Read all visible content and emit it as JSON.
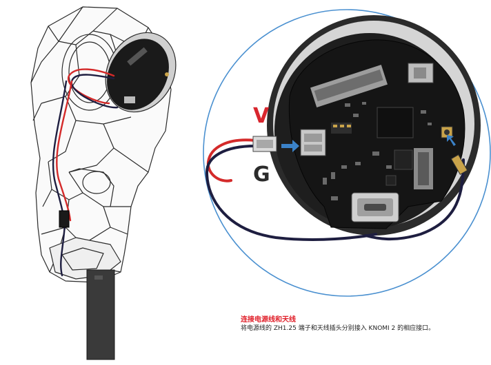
{
  "callout": {
    "v_label": "V",
    "g_label": "G",
    "v_color": "#d8262e",
    "g_color": "#2b2b2b",
    "circle_color": "#4a90d0",
    "arrow_color": "#3b82c8",
    "wire_red": "#d42a2a",
    "wire_black": "#1e1e40"
  },
  "caption": {
    "title": "连接电源线和天线",
    "body": "将电源线的 ZH1.25 端子和天线插头分别接入 KNOMI 2 的相应接口。"
  }
}
